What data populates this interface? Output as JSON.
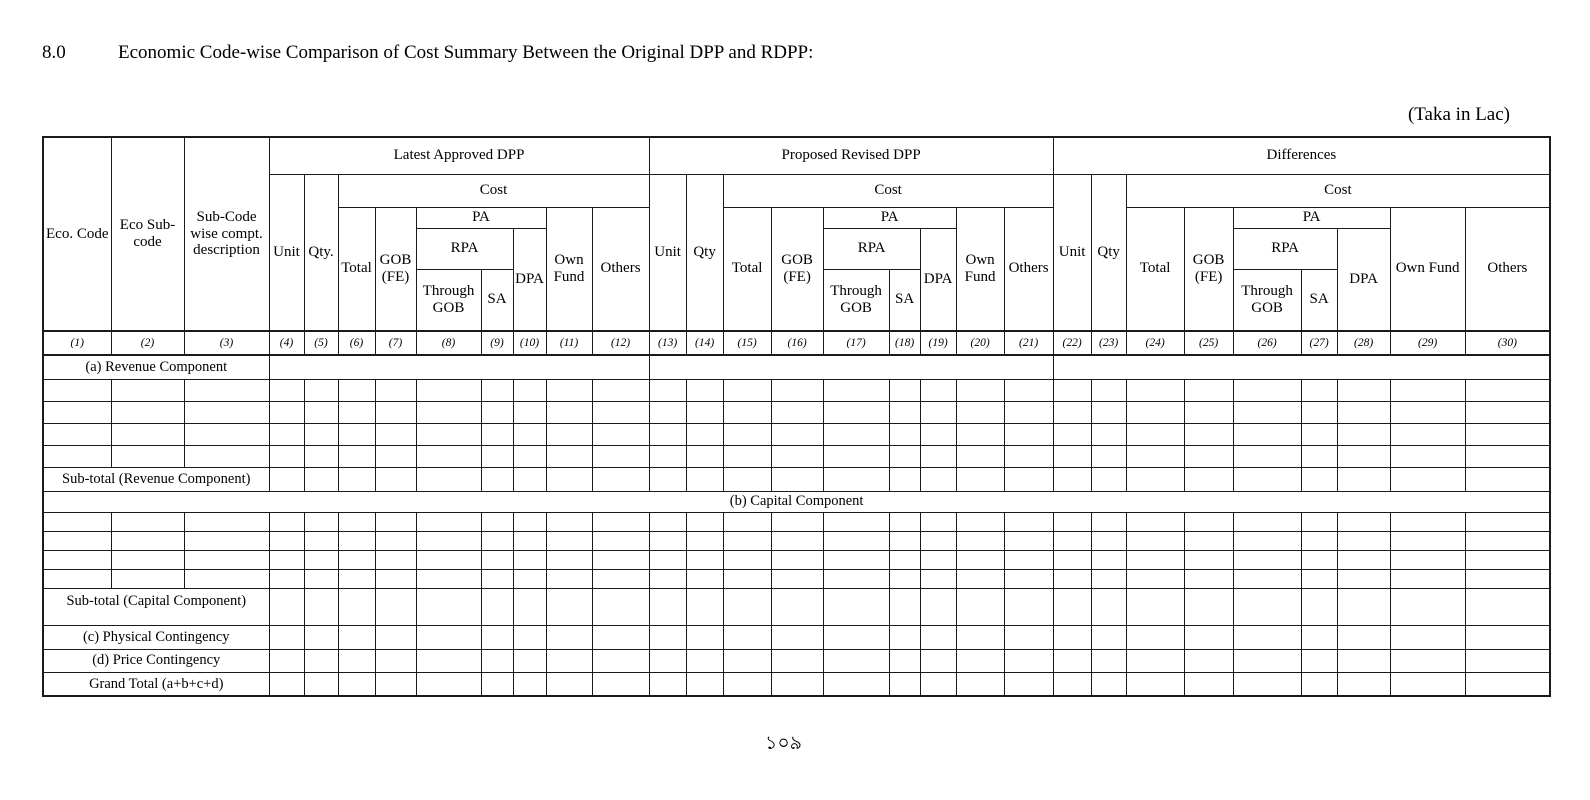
{
  "page": {
    "section_number": "8.0",
    "title": "Economic Code-wise Comparison of Cost Summary Between the Original DPP and RDPP:",
    "currency_note": "(Taka in Lac)",
    "page_number": "১০৯"
  },
  "table": {
    "fixed_columns": [
      {
        "label": "Eco. Code",
        "number": "(1)"
      },
      {
        "label": "Eco Sub-code",
        "number": "(2)"
      },
      {
        "label": "Sub-Code wise compt. description",
        "number": "(3)"
      }
    ],
    "sections": [
      {
        "title": "Latest Approved DPP",
        "unit": "Unit",
        "qty": "Qty.",
        "cost": "Cost",
        "total": "Total",
        "gob_fe": "GOB (FE)",
        "pa": "PA",
        "rpa": "RPA",
        "dpa": "DPA",
        "through_gob": "Through GOB",
        "sa": "SA",
        "own_fund": "Own Fund",
        "others": "Others",
        "column_numbers": [
          "(4)",
          "(5)",
          "(6)",
          "(7)",
          "(8)",
          "(9)",
          "(10)",
          "(11)",
          "(12)"
        ]
      },
      {
        "title": "Proposed Revised DPP",
        "unit": "Unit",
        "qty": "Qty",
        "cost": "Cost",
        "total": "Total",
        "gob_fe": "GOB (FE)",
        "pa": "PA",
        "rpa": "RPA",
        "dpa": "DPA",
        "through_gob": "Through GOB",
        "sa": "SA",
        "own_fund": "Own Fund",
        "others": "Others",
        "column_numbers": [
          "(13)",
          "(14)",
          "(15)",
          "(16)",
          "(17)",
          "(18)",
          "(19)",
          "(20)",
          "(21)"
        ]
      },
      {
        "title": "Differences",
        "unit": "Unit",
        "qty": "Qty",
        "cost": "Cost",
        "total": "Total",
        "gob_fe": "GOB (FE)",
        "pa": "PA",
        "rpa": "RPA",
        "dpa": "DPA",
        "through_gob": "Through GOB",
        "sa": "SA",
        "own_fund": "Own Fund",
        "others": "Others",
        "column_numbers": [
          "(22)",
          "(23)",
          "(24)",
          "(25)",
          "(26)",
          "(27)",
          "(28)",
          "(29)",
          "(30)"
        ]
      }
    ],
    "rows": {
      "revenue_header": "(a)  Revenue Component",
      "subtotal_revenue": "Sub-total (Revenue Component)",
      "capital_header": "(b)  Capital  Component",
      "subtotal_capital": "Sub-total (Capital  Component)",
      "physical_contingency": "(c) Physical Contingency",
      "price_contingency": "(d) Price Contingency",
      "grand_total": "Grand Total (a+b+c+d)"
    },
    "empty_data_rows": {
      "revenue": 4,
      "capital": 4
    }
  }
}
